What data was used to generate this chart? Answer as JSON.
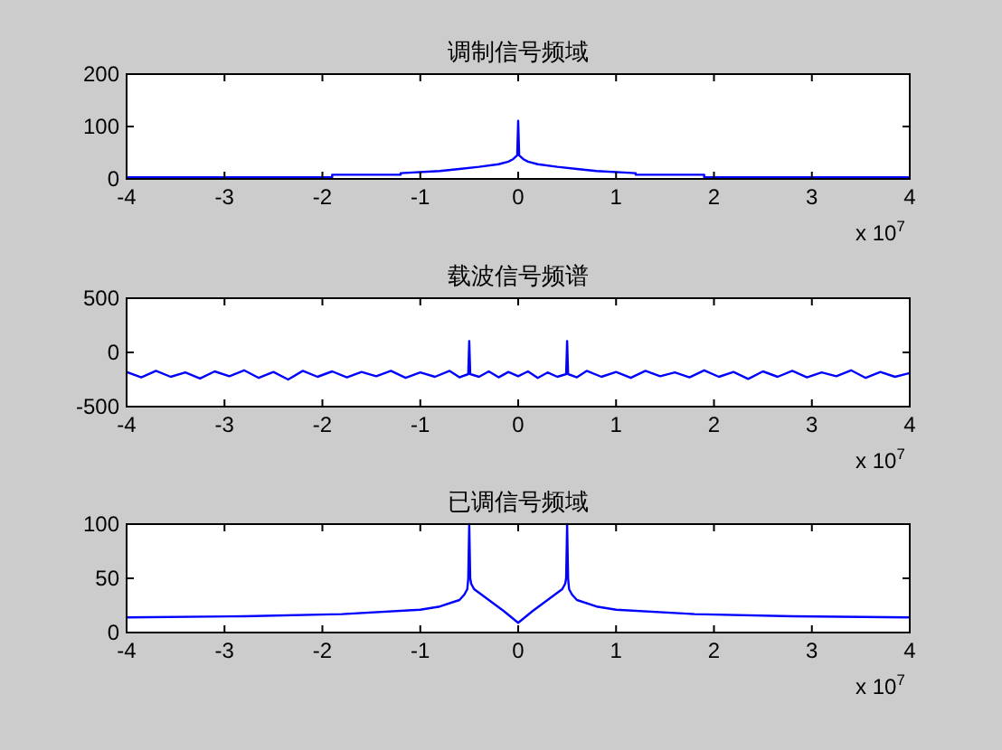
{
  "chart_data": [
    {
      "type": "line",
      "title": "调制信号频域",
      "annotations": [
        "x 10$^{7}$"
      ],
      "xlim": [
        -4,
        4
      ],
      "xticks": [
        -4,
        -3,
        -2,
        -1,
        0,
        1,
        2,
        3,
        4
      ],
      "ylim": [
        0,
        200
      ],
      "yticks": [
        0,
        100,
        200
      ],
      "series": [
        {
          "color": "#0000ff",
          "x": [
            -4,
            -1.9,
            -1.9,
            -1.2,
            -1.2,
            -0.8,
            -0.6,
            -0.4,
            -0.2,
            -0.1,
            -0.05,
            -0.01,
            0,
            0.01,
            0.05,
            0.1,
            0.2,
            0.4,
            0.6,
            0.8,
            1.2,
            1.2,
            1.9,
            1.9,
            4
          ],
          "values": [
            3,
            3,
            8,
            8,
            11,
            15,
            19,
            23,
            28,
            33,
            38,
            45,
            111,
            45,
            38,
            33,
            28,
            23,
            19,
            15,
            11,
            8,
            8,
            3,
            3
          ]
        }
      ]
    },
    {
      "type": "line",
      "title": "载波信号频谱",
      "annotations": [
        "x 10$^{7}$"
      ],
      "xlim": [
        -4,
        4
      ],
      "xticks": [
        -4,
        -3,
        -2,
        -1,
        0,
        1,
        2,
        3,
        4
      ],
      "ylim": [
        -500,
        500
      ],
      "yticks": [
        -500,
        0,
        500
      ],
      "series": [
        {
          "color": "#0000ff",
          "x": [
            -4,
            -3.85,
            -3.7,
            -3.55,
            -3.4,
            -3.25,
            -3.1,
            -2.95,
            -2.8,
            -2.65,
            -2.5,
            -2.35,
            -2.2,
            -2.05,
            -1.9,
            -1.75,
            -1.6,
            -1.45,
            -1.3,
            -1.15,
            -1.0,
            -0.85,
            -0.7,
            -0.6,
            -0.51,
            -0.5,
            -0.49,
            -0.4,
            -0.3,
            -0.2,
            -0.1,
            0,
            0.1,
            0.2,
            0.3,
            0.4,
            0.49,
            0.5,
            0.51,
            0.6,
            0.7,
            0.85,
            1.0,
            1.15,
            1.3,
            1.45,
            1.6,
            1.75,
            1.9,
            2.05,
            2.2,
            2.35,
            2.5,
            2.65,
            2.8,
            2.95,
            3.1,
            3.25,
            3.4,
            3.55,
            3.7,
            3.85,
            4
          ],
          "values": [
            -180,
            -230,
            -170,
            -225,
            -185,
            -240,
            -175,
            -220,
            -165,
            -235,
            -180,
            -250,
            -170,
            -225,
            -175,
            -230,
            -180,
            -220,
            -170,
            -235,
            -185,
            -225,
            -170,
            -230,
            -200,
            105,
            -200,
            -225,
            -175,
            -230,
            -180,
            -220,
            -175,
            -235,
            -185,
            -225,
            -200,
            105,
            -200,
            -230,
            -170,
            -225,
            -180,
            -235,
            -170,
            -220,
            -185,
            -230,
            -165,
            -225,
            -180,
            -245,
            -175,
            -225,
            -170,
            -230,
            -185,
            -220,
            -165,
            -235,
            -180,
            -225,
            -190
          ]
        }
      ]
    },
    {
      "type": "line",
      "title": "已调信号频域",
      "annotations": [
        "x 10$^{7}$"
      ],
      "xlim": [
        -4,
        4
      ],
      "xticks": [
        -4,
        -3,
        -2,
        -1,
        0,
        1,
        2,
        3,
        4
      ],
      "ylim": [
        0,
        100
      ],
      "yticks": [
        0,
        50,
        100
      ],
      "series": [
        {
          "color": "#0000ff",
          "x": [
            -4,
            -2.8,
            -1.8,
            -1,
            -0.8,
            -0.6,
            -0.55,
            -0.52,
            -0.51,
            -0.5,
            -0.49,
            -0.48,
            -0.45,
            -0.3,
            -0.15,
            0,
            0.15,
            0.3,
            0.45,
            0.48,
            0.49,
            0.5,
            0.51,
            0.52,
            0.55,
            0.6,
            0.8,
            1,
            1.8,
            2.8,
            4
          ],
          "values": [
            14,
            15,
            17,
            21,
            24,
            30,
            35,
            40,
            50,
            100,
            50,
            45,
            40,
            30,
            20,
            9,
            20,
            30,
            40,
            45,
            50,
            100,
            50,
            40,
            35,
            30,
            24,
            21,
            17,
            15,
            14
          ]
        }
      ]
    }
  ]
}
